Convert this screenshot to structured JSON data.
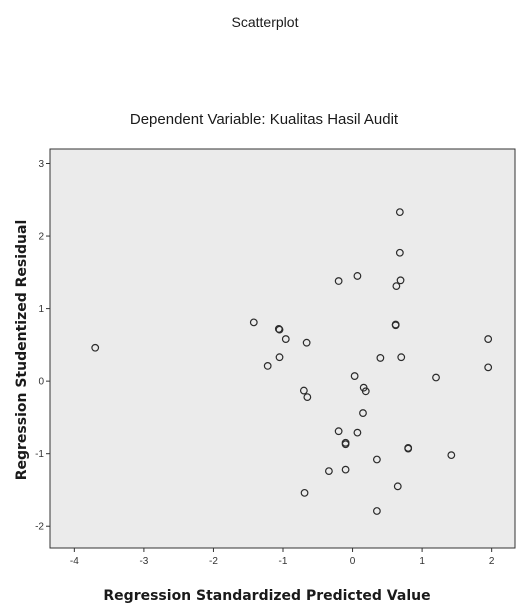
{
  "chart_data": {
    "type": "scatter",
    "title": "Scatterplot",
    "subtitle": "Dependent Variable: Kualitas Hasil Audit",
    "xlabel": "Regression Standardized Predicted Value",
    "ylabel": "Regression Studentized Residual",
    "xlim": [
      -4.35,
      2.35
    ],
    "ylim": [
      -2.3,
      3.2
    ],
    "xticks": [
      "-4",
      "-3",
      "-2",
      "-1",
      "0",
      "1",
      "2"
    ],
    "yticks": [
      "-2",
      "-1",
      "0",
      "1",
      "2",
      "3"
    ],
    "grid": false,
    "plot_background": "#ebebeb",
    "marker": "hollow-circle",
    "points": [
      {
        "x": -3.7,
        "y": 0.46
      },
      {
        "x": -1.42,
        "y": 0.81
      },
      {
        "x": -1.22,
        "y": 0.21
      },
      {
        "x": -1.06,
        "y": 0.72
      },
      {
        "x": -1.05,
        "y": 0.71
      },
      {
        "x": -0.96,
        "y": 0.58
      },
      {
        "x": -1.05,
        "y": 0.33
      },
      {
        "x": -0.66,
        "y": 0.53
      },
      {
        "x": -0.7,
        "y": -0.13
      },
      {
        "x": -0.65,
        "y": -0.22
      },
      {
        "x": -0.2,
        "y": 1.38
      },
      {
        "x": 0.07,
        "y": 1.45
      },
      {
        "x": 0.03,
        "y": 0.07
      },
      {
        "x": 0.16,
        "y": -0.09
      },
      {
        "x": 0.19,
        "y": -0.14
      },
      {
        "x": 0.15,
        "y": -0.44
      },
      {
        "x": 0.07,
        "y": -0.71
      },
      {
        "x": -0.2,
        "y": -0.69
      },
      {
        "x": -0.1,
        "y": -0.85
      },
      {
        "x": -0.1,
        "y": -0.87
      },
      {
        "x": -0.1,
        "y": -1.22
      },
      {
        "x": -0.34,
        "y": -1.24
      },
      {
        "x": -0.69,
        "y": -1.54
      },
      {
        "x": 0.35,
        "y": -1.08
      },
      {
        "x": 0.4,
        "y": 0.32
      },
      {
        "x": 0.63,
        "y": 1.31
      },
      {
        "x": 0.69,
        "y": 1.39
      },
      {
        "x": 0.68,
        "y": 2.33
      },
      {
        "x": 0.68,
        "y": 1.77
      },
      {
        "x": 0.62,
        "y": 0.78
      },
      {
        "x": 0.62,
        "y": 0.77
      },
      {
        "x": 0.7,
        "y": 0.33
      },
      {
        "x": 0.8,
        "y": -0.93
      },
      {
        "x": 0.8,
        "y": -0.92
      },
      {
        "x": 0.65,
        "y": -1.45
      },
      {
        "x": 0.35,
        "y": -1.79
      },
      {
        "x": 1.2,
        "y": 0.05
      },
      {
        "x": 1.42,
        "y": -1.02
      },
      {
        "x": 1.95,
        "y": 0.58
      },
      {
        "x": 1.95,
        "y": 0.19
      }
    ]
  }
}
